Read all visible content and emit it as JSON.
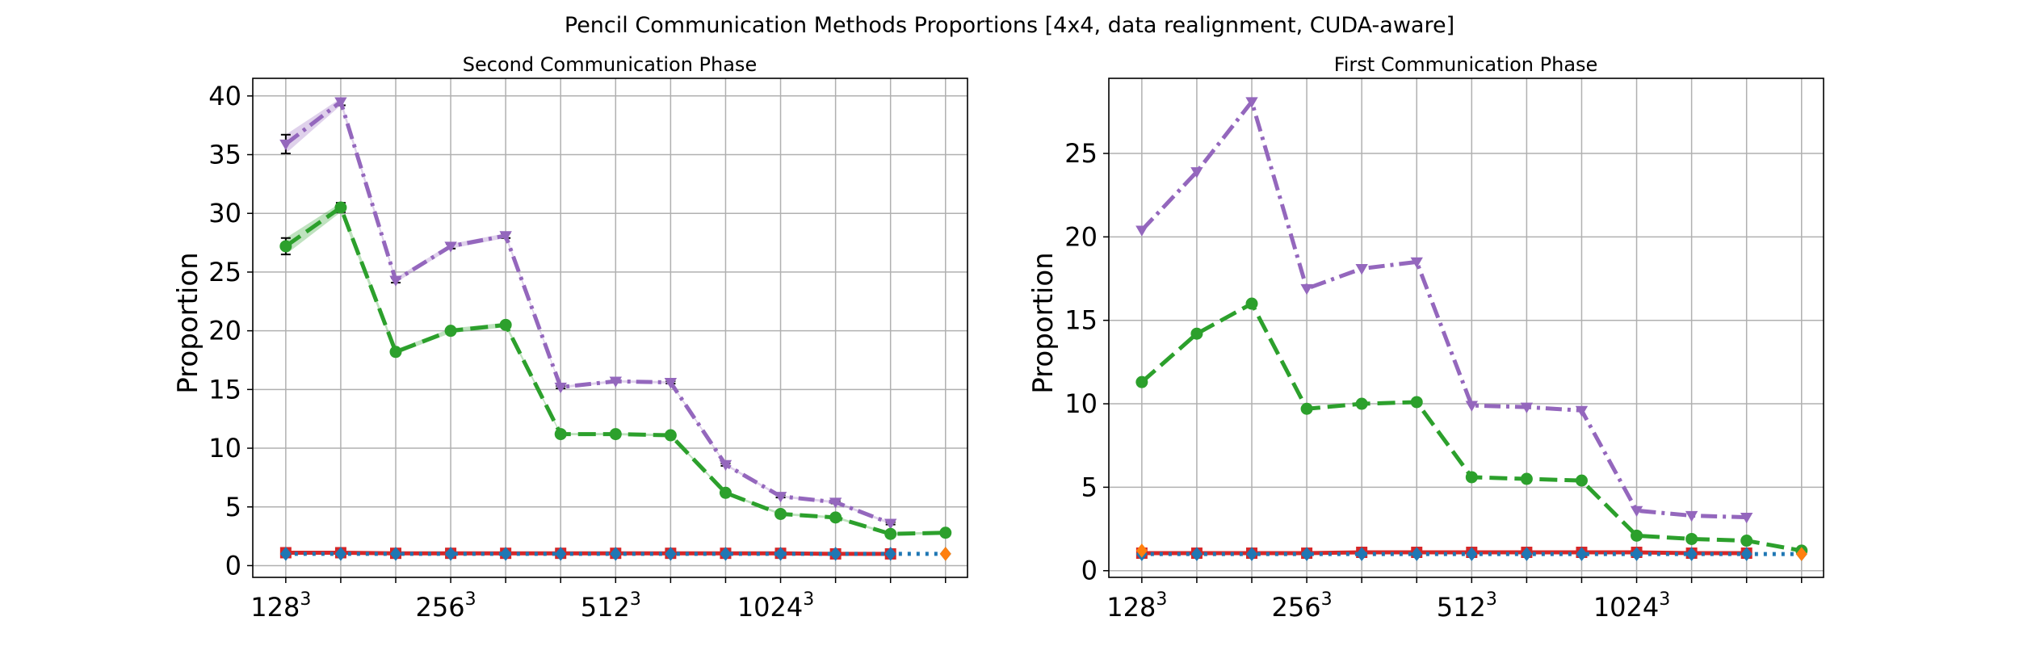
{
  "figure": {
    "title": "Pencil Communication Methods Proportions [4x4, data realignment, CUDA-aware]"
  },
  "colors": {
    "purple": "#9467bd",
    "green": "#2ca02c",
    "red": "#d62728",
    "blue": "#1f77b4",
    "orange": "#ff7f0e",
    "grid": "#b0b0b0"
  },
  "chart_data": [
    {
      "type": "line",
      "title": "Second Communication Phase",
      "ylabel": "Proportion",
      "xlabel": "",
      "x": [
        1,
        2,
        3,
        4,
        5,
        6,
        7,
        8,
        9,
        10,
        11,
        12,
        13
      ],
      "xticks": [
        {
          "x": 1,
          "base": "128",
          "exp": "3"
        },
        {
          "x": 4,
          "base": "256",
          "exp": "3"
        },
        {
          "x": 7,
          "base": "512",
          "exp": "3"
        },
        {
          "x": 10,
          "base": "1024",
          "exp": "3"
        }
      ],
      "xlim": [
        0.4,
        13.4
      ],
      "ylim": [
        -1,
        41.5
      ],
      "yticks": [
        0,
        5,
        10,
        15,
        20,
        25,
        30,
        35,
        40
      ],
      "grid": true,
      "series": [
        {
          "color": "purple",
          "marker": "tri_down",
          "dash": "dashdot",
          "values": [
            35.9,
            39.5,
            24.3,
            27.2,
            28.1,
            15.2,
            15.7,
            15.6,
            8.6,
            5.9,
            5.4,
            3.6,
            null
          ],
          "errors": [
            0.8,
            0.3,
            0.2,
            0.2,
            0.2,
            0.1,
            0.1,
            0.1,
            0.1,
            0.1,
            0.1,
            0.1,
            null
          ]
        },
        {
          "color": "green",
          "marker": "circle",
          "dash": "dash",
          "values": [
            27.2,
            30.5,
            18.2,
            20.0,
            20.5,
            11.2,
            11.2,
            11.1,
            6.2,
            4.4,
            4.1,
            2.7,
            2.8
          ],
          "errors": [
            0.7,
            0.4,
            0.2,
            0.2,
            0.2,
            0.1,
            0.1,
            0.1,
            0.1,
            0.1,
            0.1,
            0.1,
            0.1
          ]
        },
        {
          "color": "red",
          "marker": "square",
          "dash": "solid",
          "values": [
            1.1,
            1.1,
            1.05,
            1.05,
            1.05,
            1.05,
            1.05,
            1.05,
            1.05,
            1.05,
            1.0,
            1.0,
            null
          ],
          "errors": null
        },
        {
          "color": "blue",
          "marker": "diamond",
          "dash": "dot",
          "values": [
            1.0,
            1.0,
            1.0,
            1.0,
            1.0,
            1.0,
            1.0,
            1.0,
            1.0,
            1.0,
            1.0,
            1.0,
            1.0
          ],
          "errors": null
        },
        {
          "color": "orange",
          "marker": "diamond",
          "dash": "dot",
          "values": [
            null,
            null,
            null,
            null,
            null,
            null,
            null,
            null,
            null,
            null,
            null,
            null,
            1.0
          ],
          "errors": null
        }
      ]
    },
    {
      "type": "line",
      "title": "First Communication Phase",
      "ylabel": "Proportion",
      "xlabel": "",
      "x": [
        1,
        2,
        3,
        4,
        5,
        6,
        7,
        8,
        9,
        10,
        11,
        12,
        13
      ],
      "xticks": [
        {
          "x": 1,
          "base": "128",
          "exp": "3"
        },
        {
          "x": 4,
          "base": "256",
          "exp": "3"
        },
        {
          "x": 7,
          "base": "512",
          "exp": "3"
        },
        {
          "x": 10,
          "base": "1024",
          "exp": "3"
        }
      ],
      "xlim": [
        0.4,
        13.4
      ],
      "ylim": [
        -0.4,
        29.5
      ],
      "yticks": [
        0,
        5,
        10,
        15,
        20,
        25
      ],
      "grid": true,
      "series": [
        {
          "color": "purple",
          "marker": "tri_down",
          "dash": "dashdot",
          "values": [
            20.4,
            23.9,
            28.1,
            16.9,
            18.1,
            18.5,
            9.9,
            9.8,
            9.6,
            3.6,
            3.3,
            3.2,
            null
          ],
          "errors": null
        },
        {
          "color": "green",
          "marker": "circle",
          "dash": "dash",
          "values": [
            11.3,
            14.2,
            16.0,
            9.7,
            10.0,
            10.1,
            5.6,
            5.5,
            5.4,
            2.1,
            1.9,
            1.8,
            1.2
          ],
          "errors": null
        },
        {
          "color": "red",
          "marker": "square",
          "dash": "solid",
          "values": [
            1.05,
            1.05,
            1.05,
            1.05,
            1.1,
            1.1,
            1.1,
            1.1,
            1.1,
            1.1,
            1.05,
            1.05,
            null
          ],
          "errors": null
        },
        {
          "color": "blue",
          "marker": "diamond",
          "dash": "dot",
          "values": [
            1.0,
            1.0,
            1.0,
            1.0,
            1.0,
            1.0,
            1.0,
            1.0,
            1.0,
            1.0,
            1.0,
            1.0,
            1.0
          ],
          "errors": null
        },
        {
          "color": "orange",
          "marker": "diamond",
          "dash": "dot",
          "values": [
            1.2,
            null,
            null,
            null,
            null,
            null,
            null,
            null,
            null,
            null,
            null,
            null,
            1.0
          ],
          "errors": null
        }
      ]
    }
  ]
}
